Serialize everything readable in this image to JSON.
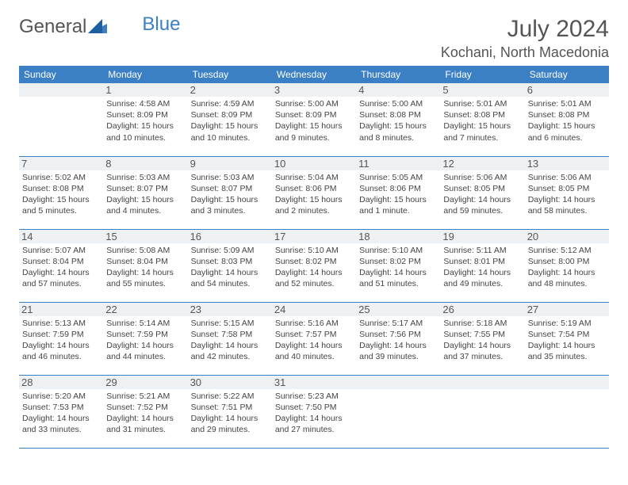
{
  "logo": {
    "word1": "General",
    "word2": "Blue"
  },
  "header": {
    "month": "July 2024",
    "location": "Kochani, North Macedonia"
  },
  "colors": {
    "accent": "#3b7fc4",
    "daybg": "#eef1f3",
    "text": "#444"
  },
  "weekdays": [
    "Sunday",
    "Monday",
    "Tuesday",
    "Wednesday",
    "Thursday",
    "Friday",
    "Saturday"
  ],
  "grid": [
    [
      null,
      {
        "n": "1",
        "sr": "Sunrise: 4:58 AM",
        "ss": "Sunset: 8:09 PM",
        "d1": "Daylight: 15 hours",
        "d2": "and 10 minutes."
      },
      {
        "n": "2",
        "sr": "Sunrise: 4:59 AM",
        "ss": "Sunset: 8:09 PM",
        "d1": "Daylight: 15 hours",
        "d2": "and 10 minutes."
      },
      {
        "n": "3",
        "sr": "Sunrise: 5:00 AM",
        "ss": "Sunset: 8:09 PM",
        "d1": "Daylight: 15 hours",
        "d2": "and 9 minutes."
      },
      {
        "n": "4",
        "sr": "Sunrise: 5:00 AM",
        "ss": "Sunset: 8:08 PM",
        "d1": "Daylight: 15 hours",
        "d2": "and 8 minutes."
      },
      {
        "n": "5",
        "sr": "Sunrise: 5:01 AM",
        "ss": "Sunset: 8:08 PM",
        "d1": "Daylight: 15 hours",
        "d2": "and 7 minutes."
      },
      {
        "n": "6",
        "sr": "Sunrise: 5:01 AM",
        "ss": "Sunset: 8:08 PM",
        "d1": "Daylight: 15 hours",
        "d2": "and 6 minutes."
      }
    ],
    [
      {
        "n": "7",
        "sr": "Sunrise: 5:02 AM",
        "ss": "Sunset: 8:08 PM",
        "d1": "Daylight: 15 hours",
        "d2": "and 5 minutes."
      },
      {
        "n": "8",
        "sr": "Sunrise: 5:03 AM",
        "ss": "Sunset: 8:07 PM",
        "d1": "Daylight: 15 hours",
        "d2": "and 4 minutes."
      },
      {
        "n": "9",
        "sr": "Sunrise: 5:03 AM",
        "ss": "Sunset: 8:07 PM",
        "d1": "Daylight: 15 hours",
        "d2": "and 3 minutes."
      },
      {
        "n": "10",
        "sr": "Sunrise: 5:04 AM",
        "ss": "Sunset: 8:06 PM",
        "d1": "Daylight: 15 hours",
        "d2": "and 2 minutes."
      },
      {
        "n": "11",
        "sr": "Sunrise: 5:05 AM",
        "ss": "Sunset: 8:06 PM",
        "d1": "Daylight: 15 hours",
        "d2": "and 1 minute."
      },
      {
        "n": "12",
        "sr": "Sunrise: 5:06 AM",
        "ss": "Sunset: 8:05 PM",
        "d1": "Daylight: 14 hours",
        "d2": "and 59 minutes."
      },
      {
        "n": "13",
        "sr": "Sunrise: 5:06 AM",
        "ss": "Sunset: 8:05 PM",
        "d1": "Daylight: 14 hours",
        "d2": "and 58 minutes."
      }
    ],
    [
      {
        "n": "14",
        "sr": "Sunrise: 5:07 AM",
        "ss": "Sunset: 8:04 PM",
        "d1": "Daylight: 14 hours",
        "d2": "and 57 minutes."
      },
      {
        "n": "15",
        "sr": "Sunrise: 5:08 AM",
        "ss": "Sunset: 8:04 PM",
        "d1": "Daylight: 14 hours",
        "d2": "and 55 minutes."
      },
      {
        "n": "16",
        "sr": "Sunrise: 5:09 AM",
        "ss": "Sunset: 8:03 PM",
        "d1": "Daylight: 14 hours",
        "d2": "and 54 minutes."
      },
      {
        "n": "17",
        "sr": "Sunrise: 5:10 AM",
        "ss": "Sunset: 8:02 PM",
        "d1": "Daylight: 14 hours",
        "d2": "and 52 minutes."
      },
      {
        "n": "18",
        "sr": "Sunrise: 5:10 AM",
        "ss": "Sunset: 8:02 PM",
        "d1": "Daylight: 14 hours",
        "d2": "and 51 minutes."
      },
      {
        "n": "19",
        "sr": "Sunrise: 5:11 AM",
        "ss": "Sunset: 8:01 PM",
        "d1": "Daylight: 14 hours",
        "d2": "and 49 minutes."
      },
      {
        "n": "20",
        "sr": "Sunrise: 5:12 AM",
        "ss": "Sunset: 8:00 PM",
        "d1": "Daylight: 14 hours",
        "d2": "and 48 minutes."
      }
    ],
    [
      {
        "n": "21",
        "sr": "Sunrise: 5:13 AM",
        "ss": "Sunset: 7:59 PM",
        "d1": "Daylight: 14 hours",
        "d2": "and 46 minutes."
      },
      {
        "n": "22",
        "sr": "Sunrise: 5:14 AM",
        "ss": "Sunset: 7:59 PM",
        "d1": "Daylight: 14 hours",
        "d2": "and 44 minutes."
      },
      {
        "n": "23",
        "sr": "Sunrise: 5:15 AM",
        "ss": "Sunset: 7:58 PM",
        "d1": "Daylight: 14 hours",
        "d2": "and 42 minutes."
      },
      {
        "n": "24",
        "sr": "Sunrise: 5:16 AM",
        "ss": "Sunset: 7:57 PM",
        "d1": "Daylight: 14 hours",
        "d2": "and 40 minutes."
      },
      {
        "n": "25",
        "sr": "Sunrise: 5:17 AM",
        "ss": "Sunset: 7:56 PM",
        "d1": "Daylight: 14 hours",
        "d2": "and 39 minutes."
      },
      {
        "n": "26",
        "sr": "Sunrise: 5:18 AM",
        "ss": "Sunset: 7:55 PM",
        "d1": "Daylight: 14 hours",
        "d2": "and 37 minutes."
      },
      {
        "n": "27",
        "sr": "Sunrise: 5:19 AM",
        "ss": "Sunset: 7:54 PM",
        "d1": "Daylight: 14 hours",
        "d2": "and 35 minutes."
      }
    ],
    [
      {
        "n": "28",
        "sr": "Sunrise: 5:20 AM",
        "ss": "Sunset: 7:53 PM",
        "d1": "Daylight: 14 hours",
        "d2": "and 33 minutes."
      },
      {
        "n": "29",
        "sr": "Sunrise: 5:21 AM",
        "ss": "Sunset: 7:52 PM",
        "d1": "Daylight: 14 hours",
        "d2": "and 31 minutes."
      },
      {
        "n": "30",
        "sr": "Sunrise: 5:22 AM",
        "ss": "Sunset: 7:51 PM",
        "d1": "Daylight: 14 hours",
        "d2": "and 29 minutes."
      },
      {
        "n": "31",
        "sr": "Sunrise: 5:23 AM",
        "ss": "Sunset: 7:50 PM",
        "d1": "Daylight: 14 hours",
        "d2": "and 27 minutes."
      },
      null,
      null,
      null
    ]
  ]
}
